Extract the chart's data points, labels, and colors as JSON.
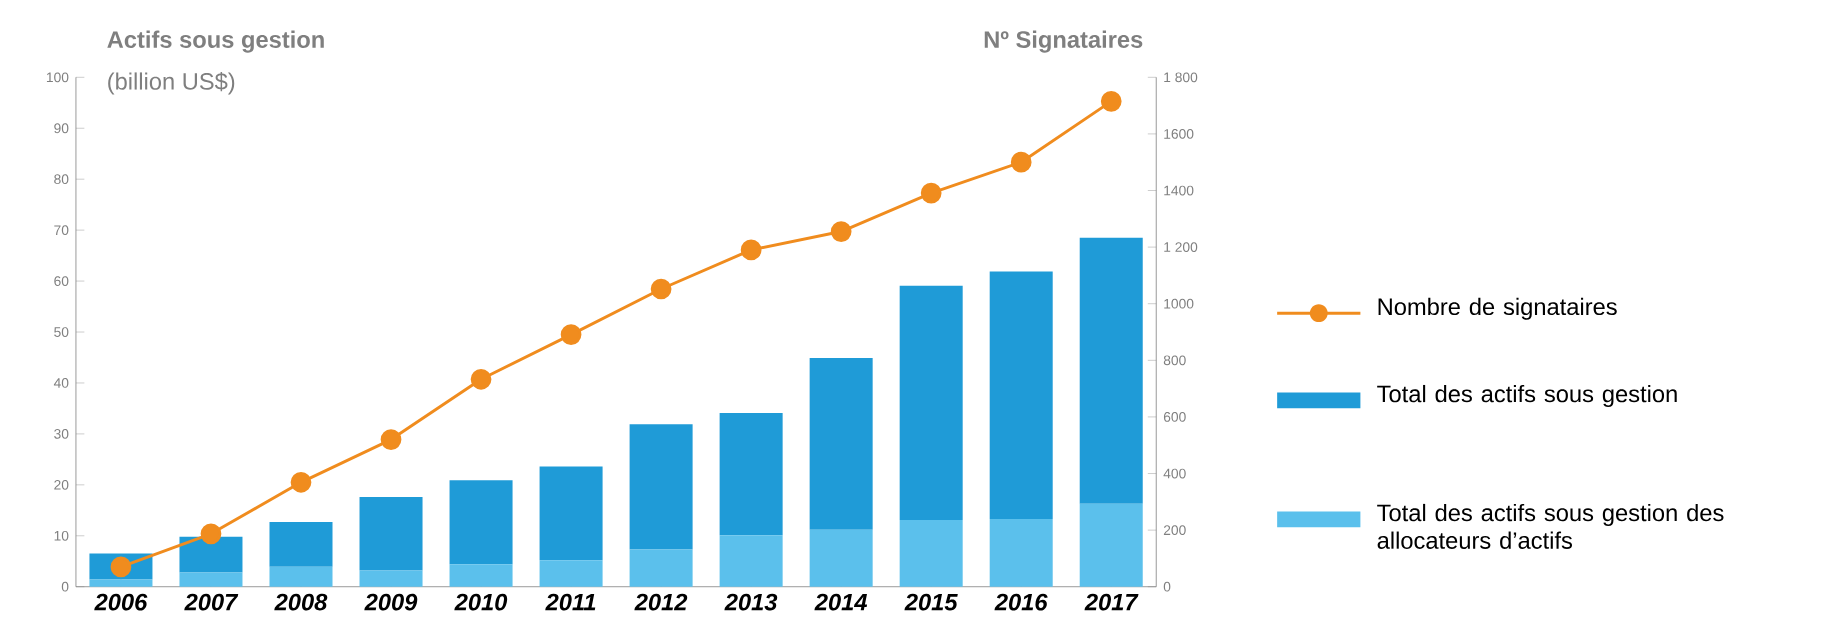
{
  "chart_data": {
    "type": "bar",
    "stacked": true,
    "ylabel": "Actifs sous gestion",
    "subtitle": "(billion US$)",
    "y2label": "Nº Signataires",
    "categories": [
      "2006",
      "2007",
      "2008",
      "2009",
      "2010",
      "2011",
      "2012",
      "2013",
      "2014",
      "2015",
      "2016",
      "2017"
    ],
    "series": [
      {
        "name": "Total des actifs sous gestion des allocateurs d’actifs",
        "color": "#5bc0ec",
        "values": [
          1.4,
          2.8,
          3.9,
          3.2,
          4.4,
          5.2,
          7.3,
          10.1,
          11.2,
          13.1,
          13.3,
          16.3
        ]
      },
      {
        "name": "Total des actifs sous gestion",
        "color": "#1f9bd7",
        "values": [
          5.1,
          7.0,
          8.8,
          14.4,
          16.5,
          18.4,
          24.6,
          24.0,
          33.7,
          46.0,
          48.6,
          52.2
        ]
      },
      {
        "name": "Nombre de signataires",
        "type": "line",
        "axis": "y2",
        "marker": "circle",
        "color": "#f08c1e",
        "values": [
          70,
          187,
          369,
          520,
          733,
          891,
          1052,
          1190,
          1255,
          1391,
          1500,
          1715
        ]
      }
    ],
    "ylim": [
      0,
      100
    ],
    "yticks": [
      0,
      10,
      20,
      30,
      40,
      50,
      60,
      70,
      80,
      90,
      100
    ],
    "y2lim": [
      0,
      1800
    ],
    "y2ticks": [
      0,
      200,
      400,
      {
        "value": 600,
        "label": "600"
      },
      800,
      1000,
      {
        "value": 1200,
        "label": "1 200"
      },
      1400,
      1600,
      {
        "value": 1800,
        "label": "1 800"
      }
    ],
    "legend": "right"
  }
}
